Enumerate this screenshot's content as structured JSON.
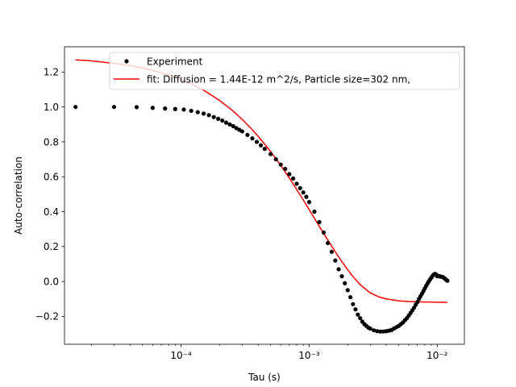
{
  "chart_data": {
    "type": "scatter",
    "title": "",
    "xlabel": "Tau (s)",
    "ylabel": "Auto-correlation",
    "x_scale": "log",
    "xlim": [
      1.23e-05,
      0.0163
    ],
    "ylim": [
      -0.36,
      1.345
    ],
    "grid": false,
    "legend_position": "top-right",
    "x_ticks": [
      {
        "value": 0.0001,
        "label": "10⁻⁴"
      },
      {
        "value": 0.001,
        "label": "10⁻³"
      },
      {
        "value": 0.01,
        "label": "10⁻²"
      }
    ],
    "y_ticks": [
      {
        "value": -0.2,
        "label": "−0.2"
      },
      {
        "value": 0.0,
        "label": "0.0"
      },
      {
        "value": 0.2,
        "label": "0.2"
      },
      {
        "value": 0.4,
        "label": "0.4"
      },
      {
        "value": 0.6,
        "label": "0.6"
      },
      {
        "value": 0.8,
        "label": "0.8"
      },
      {
        "value": 1.0,
        "label": "1.0"
      },
      {
        "value": 1.2,
        "label": "1.2"
      }
    ],
    "series": [
      {
        "name": "Experiment",
        "kind": "scatter",
        "color": "#000000",
        "marker": "dot",
        "x": [
          1.5e-05,
          3e-05,
          4.5e-05,
          6e-05,
          7.5e-05,
          9e-05,
          0.000105,
          0.00012,
          0.000135,
          0.00015,
          0.000165,
          0.00018,
          0.000195,
          0.00021,
          0.000225,
          0.00024,
          0.000255,
          0.00027,
          0.000285,
          0.0003,
          0.00033,
          0.00036,
          0.00039,
          0.00042,
          0.00045,
          0.0005,
          0.00055,
          0.0006,
          0.00065,
          0.0007,
          0.00075,
          0.0008,
          0.00085,
          0.0009,
          0.00095,
          0.001,
          0.0011,
          0.0012,
          0.0013,
          0.0014,
          0.0015,
          0.0016,
          0.0017,
          0.0018,
          0.0019,
          0.002,
          0.0021,
          0.0022,
          0.0023,
          0.0024,
          0.0025,
          0.0026,
          0.0027,
          0.0028,
          0.0029,
          0.003,
          0.0032,
          0.0034,
          0.0036,
          0.0038,
          0.004,
          0.0042,
          0.0044,
          0.0046,
          0.0048,
          0.005,
          0.0052,
          0.0054,
          0.0056,
          0.0058,
          0.006,
          0.0062,
          0.0064,
          0.0066,
          0.0068,
          0.007,
          0.0072,
          0.0074,
          0.0076,
          0.0078,
          0.008,
          0.0082,
          0.0084,
          0.0086,
          0.0088,
          0.009,
          0.0092,
          0.0094,
          0.0096,
          0.0098,
          0.01,
          0.0102,
          0.0104,
          0.0106,
          0.0108,
          0.011,
          0.0112,
          0.0114,
          0.0116,
          0.0118,
          0.012
        ],
        "y": [
          1.0,
          1.0,
          0.999,
          0.995,
          0.991,
          0.988,
          0.985,
          0.978,
          0.97,
          0.962,
          0.953,
          0.942,
          0.932,
          0.922,
          0.91,
          0.9,
          0.89,
          0.879,
          0.869,
          0.86,
          0.84,
          0.82,
          0.8,
          0.78,
          0.76,
          0.73,
          0.7,
          0.67,
          0.645,
          0.615,
          0.59,
          0.56,
          0.535,
          0.51,
          0.485,
          0.455,
          0.4,
          0.34,
          0.28,
          0.22,
          0.17,
          0.12,
          0.07,
          0.03,
          -0.01,
          -0.05,
          -0.09,
          -0.13,
          -0.16,
          -0.19,
          -0.21,
          -0.23,
          -0.245,
          -0.255,
          -0.265,
          -0.27,
          -0.28,
          -0.285,
          -0.287,
          -0.287,
          -0.285,
          -0.282,
          -0.278,
          -0.27,
          -0.262,
          -0.255,
          -0.245,
          -0.235,
          -0.222,
          -0.21,
          -0.195,
          -0.18,
          -0.165,
          -0.15,
          -0.133,
          -0.118,
          -0.1,
          -0.085,
          -0.07,
          -0.055,
          -0.04,
          -0.025,
          -0.012,
          0.0,
          0.012,
          0.022,
          0.032,
          0.04,
          0.043,
          0.04,
          0.03,
          0.031,
          0.03,
          0.028,
          0.027,
          0.026,
          0.022,
          0.018,
          0.013,
          0.008,
          0.004
        ]
      },
      {
        "name": "fit: Diffusion = 1.44E-12 m^2/s, Particle size=302 nm,",
        "kind": "line",
        "color": "#ff0000",
        "x": [
          1.5e-05,
          2e-05,
          3e-05,
          4e-05,
          5e-05,
          6e-05,
          8e-05,
          0.0001,
          0.00012,
          0.00015,
          0.0002,
          0.00025,
          0.0003,
          0.00035,
          0.0004,
          0.0005,
          0.0006,
          0.0007,
          0.0008,
          0.0009,
          0.001,
          0.0012,
          0.0014,
          0.0016,
          0.0018,
          0.002,
          0.0022,
          0.0025,
          0.003,
          0.0035,
          0.004,
          0.005,
          0.006,
          0.007,
          0.008,
          0.009,
          0.01,
          0.011,
          0.012
        ],
        "y": [
          1.27,
          1.264,
          1.25,
          1.237,
          1.223,
          1.21,
          1.183,
          1.157,
          1.132,
          1.096,
          1.037,
          0.982,
          0.929,
          0.879,
          0.832,
          0.745,
          0.665,
          0.593,
          0.527,
          0.467,
          0.412,
          0.316,
          0.237,
          0.17,
          0.114,
          0.067,
          0.028,
          -0.018,
          -0.066,
          -0.088,
          -0.1,
          -0.111,
          -0.115,
          -0.117,
          -0.118,
          -0.118,
          -0.119,
          -0.12,
          -0.12
        ]
      }
    ]
  }
}
